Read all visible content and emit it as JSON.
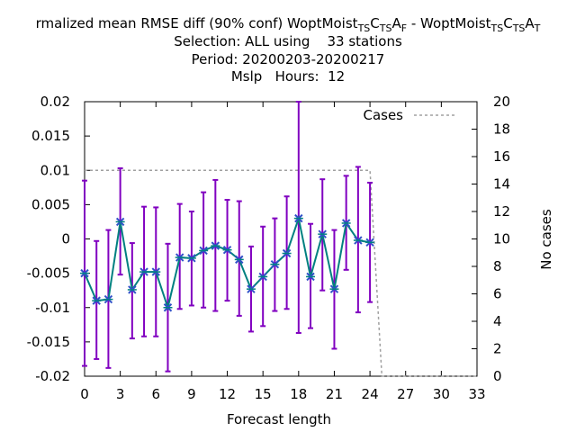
{
  "chart_data": {
    "type": "line",
    "title_parts": [
      "rmalized mean RMSE diff (90% conf) WoptMoist",
      "TS",
      "C",
      "TS",
      "A",
      "F",
      " - WoptMoist",
      "TS",
      "C",
      "TS",
      "A",
      "T"
    ],
    "subtitle_lines": [
      "Selection: ALL using    33 stations",
      "Period: 20200203-20200217",
      "Mslp   Hours:  12"
    ],
    "xlabel": "Forecast length",
    "ylabel": "",
    "y2label": "No cases",
    "legend": [
      "Cases"
    ],
    "xlim": [
      0,
      33
    ],
    "ylim": [
      -0.02,
      0.02
    ],
    "y2lim": [
      0,
      20
    ],
    "x_ticks": [
      "0",
      "3",
      "6",
      "9",
      "12",
      "15",
      "18",
      "21",
      "24",
      "27",
      "30",
      "33"
    ],
    "y_ticks": [
      "-0.02",
      "-0.015",
      "-0.01",
      "-0.005",
      "0",
      "0.005",
      "0.01",
      "0.015",
      "0.02"
    ],
    "y2_ticks": [
      "0",
      "2",
      "4",
      "6",
      "8",
      "10",
      "12",
      "14",
      "16",
      "18",
      "20"
    ],
    "grid": false,
    "legend_position": "top-right",
    "colors": {
      "mean": "#008080",
      "errorbar": "#8000c0",
      "marker": "#3050c8",
      "cases": "#a0a0a0"
    },
    "series": [
      {
        "x": [
          0,
          1,
          2,
          3,
          4,
          5,
          6,
          7,
          8,
          9,
          10,
          11,
          12,
          13,
          14,
          15,
          16,
          17,
          18,
          19,
          20,
          21,
          22,
          23,
          24
        ],
        "values": [
          -0.005,
          -0.009,
          -0.0088,
          0.0025,
          -0.0074,
          -0.0048,
          -0.0048,
          -0.01,
          -0.0027,
          -0.0028,
          -0.0017,
          -0.001,
          -0.0016,
          -0.003,
          -0.0073,
          -0.0055,
          -0.0037,
          -0.0021,
          0.003,
          -0.0055,
          0.0007,
          -0.0073,
          0.0023,
          -0.0002,
          -0.0005
        ],
        "err_low": [
          -0.0185,
          -0.0175,
          -0.0188,
          -0.0052,
          -0.0145,
          -0.0142,
          -0.0142,
          -0.0193,
          -0.0102,
          -0.0097,
          -0.01,
          -0.0105,
          -0.009,
          -0.0112,
          -0.0135,
          -0.0127,
          -0.0105,
          -0.0102,
          -0.0137,
          -0.013,
          -0.0075,
          -0.016,
          -0.0045,
          -0.0107,
          -0.0092
        ],
        "err_high": [
          0.0085,
          -0.0003,
          0.0013,
          0.0103,
          -0.0006,
          0.0047,
          0.0046,
          -0.0007,
          0.0051,
          0.004,
          0.0068,
          0.0086,
          0.0057,
          0.0055,
          -0.0011,
          0.0018,
          0.003,
          0.0062,
          0.02,
          0.0022,
          0.0087,
          0.0013,
          0.0092,
          0.0105,
          0.0082
        ]
      },
      {
        "name": "Cases",
        "x": [
          0,
          24,
          25,
          33
        ],
        "values": [
          15,
          15,
          0,
          0
        ]
      }
    ]
  }
}
